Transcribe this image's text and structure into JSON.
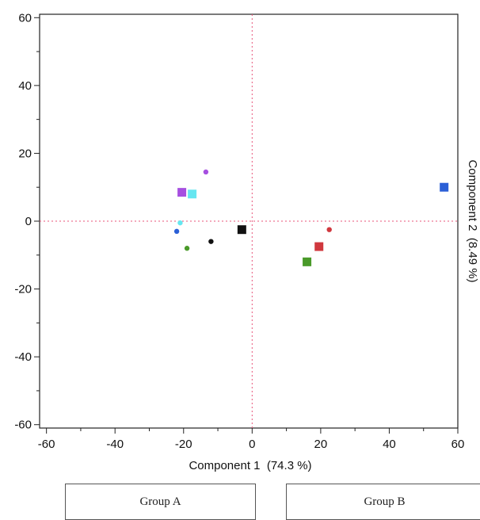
{
  "chart_data": {
    "type": "scatter",
    "title": "",
    "xlabel": "Component 1  (74.3 %)",
    "ylabel": "Component 2  (8.49 %)",
    "xlim": [
      -62,
      60
    ],
    "ylim": [
      -61,
      61
    ],
    "xticks": [
      -60,
      -40,
      -20,
      0,
      20,
      40,
      60
    ],
    "yticks": [
      -60,
      -40,
      -20,
      0,
      20,
      40,
      60
    ],
    "reference_lines": {
      "x": 0,
      "y": 0,
      "style": "dotted",
      "color": "#e8547a"
    },
    "grid": false,
    "points": [
      {
        "x": -20.5,
        "y": 8.5,
        "marker": "square",
        "color": "#a64fe0"
      },
      {
        "x": -17.5,
        "y": 8.0,
        "marker": "square",
        "color": "#66e6f0"
      },
      {
        "x": -13.5,
        "y": 14.5,
        "marker": "circle",
        "color": "#a64fe0"
      },
      {
        "x": -21.0,
        "y": -0.5,
        "marker": "circle",
        "color": "#66e6f0"
      },
      {
        "x": -22.0,
        "y": -3.0,
        "marker": "circle",
        "color": "#2b5fd6"
      },
      {
        "x": -12.0,
        "y": -6.0,
        "marker": "circle",
        "color": "#111111"
      },
      {
        "x": -19.0,
        "y": -8.0,
        "marker": "circle",
        "color": "#4a9a2a"
      },
      {
        "x": -3.0,
        "y": -2.5,
        "marker": "square",
        "color": "#111111"
      },
      {
        "x": 22.5,
        "y": -2.5,
        "marker": "circle",
        "color": "#d0383e"
      },
      {
        "x": 19.5,
        "y": -7.5,
        "marker": "square",
        "color": "#d0383e"
      },
      {
        "x": 16.0,
        "y": -12.0,
        "marker": "square",
        "color": "#4a9a2a"
      },
      {
        "x": 56.0,
        "y": 10.0,
        "marker": "square",
        "color": "#2b5fd6"
      }
    ]
  },
  "legend": {
    "group_a": "Group A",
    "group_b": "Group B"
  }
}
